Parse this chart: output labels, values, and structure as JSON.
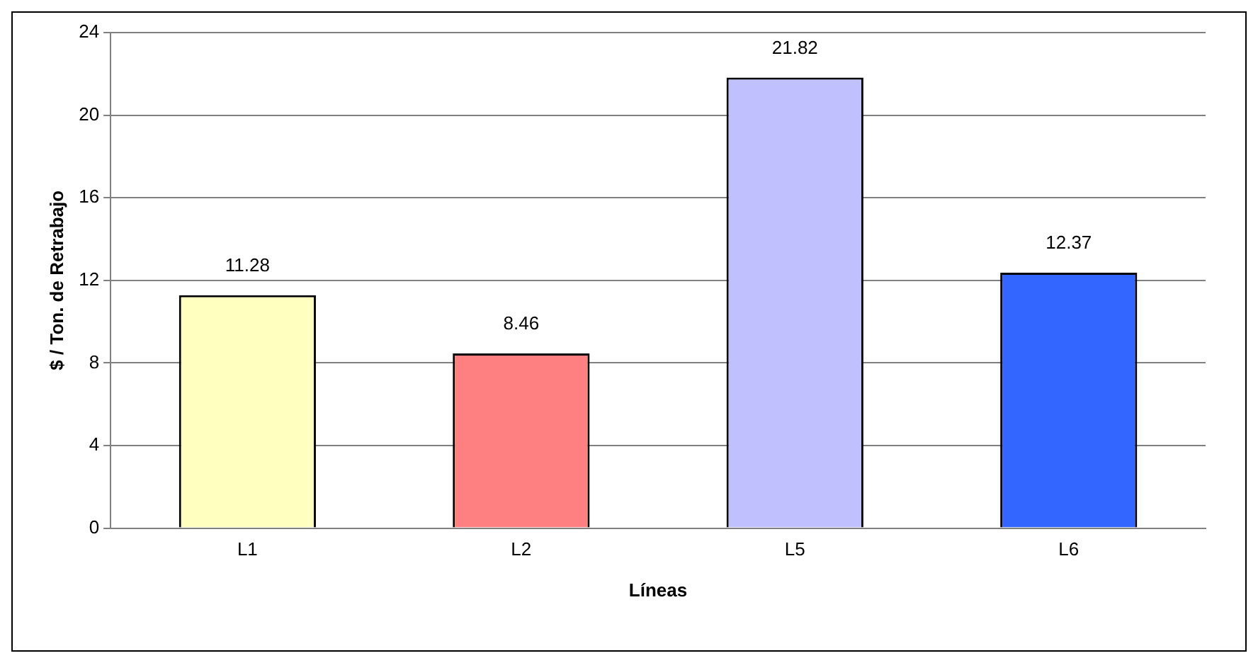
{
  "chart_data": {
    "type": "bar",
    "xlabel": "Líneas",
    "ylabel": "$ / Ton. de Retrabajo",
    "categories": [
      "L1",
      "L2",
      "L5",
      "L6"
    ],
    "values": [
      11.28,
      8.46,
      21.82,
      12.37
    ],
    "colors": [
      "#ffffc0",
      "#ff8080",
      "#c0c0ff",
      "#3366ff"
    ],
    "ylim": [
      0,
      24
    ],
    "yticks": [
      0,
      4,
      8,
      12,
      16,
      20,
      24
    ],
    "grid": "y",
    "data_labels": true,
    "legend": false
  }
}
